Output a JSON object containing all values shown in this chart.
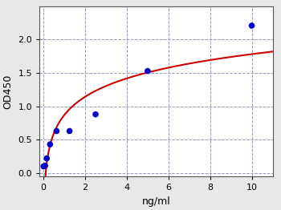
{
  "scatter_x": [
    0.0,
    0.078,
    0.156,
    0.313,
    0.625,
    1.25,
    2.5,
    5.0,
    10.0
  ],
  "scatter_y": [
    0.1,
    0.11,
    0.22,
    0.43,
    0.63,
    0.63,
    0.88,
    1.53,
    2.21
  ],
  "xlabel": "ng/ml",
  "ylabel": "OD450",
  "xlim": [
    -0.2,
    11
  ],
  "ylim": [
    -0.05,
    2.5
  ],
  "xticks": [
    0,
    2,
    4,
    6,
    8,
    10
  ],
  "yticks": [
    0.0,
    0.5,
    1.0,
    1.5,
    2.0
  ],
  "dot_color": "#0000cc",
  "curve_color": "#cc0000",
  "background_color": "#e8e8e8",
  "plot_bg_color": "#ffffff",
  "grid_color": "#9999bb",
  "dot_size": 30,
  "curve_linewidth": 1.5,
  "tick_labelsize": 8,
  "axis_labelsize": 9
}
